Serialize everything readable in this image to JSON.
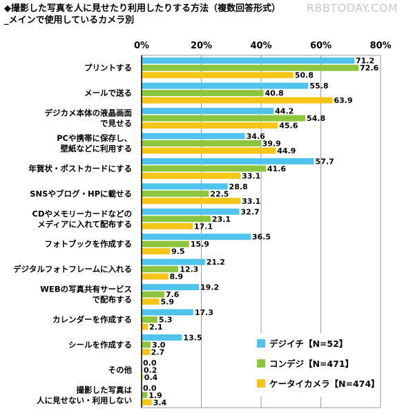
{
  "title_line1": "◆撮影した写真を人に見せたり利用したりする方法（複数回答形式）",
  "title_line2": "_メインで使用しているカメラ別",
  "watermark": "RBBTODAY.COM",
  "chart_data": {
    "type": "bar",
    "orientation": "horizontal",
    "xlim": [
      0,
      80
    ],
    "ticks": [
      "0%",
      "20%",
      "40%",
      "60%",
      "80%"
    ],
    "tick_values": [
      0,
      20,
      40,
      60,
      80
    ],
    "grid": true,
    "legend_position": "bottom-right",
    "categories": [
      [
        "プリントする"
      ],
      [
        "メールで送る"
      ],
      [
        "デジカメ本体の液晶画面",
        "で見せる"
      ],
      [
        "PCや携帯に保存し、",
        "壁紙などに利用する"
      ],
      [
        "年賀状・ポストカードにする"
      ],
      [
        "SNSやブログ・HPに載せる"
      ],
      [
        "CDやメモリーカードなどの",
        "メディアに入れて配布する"
      ],
      [
        "フォトブックを作成する"
      ],
      [
        "デジタルフォトフレームに入れる"
      ],
      [
        "WEBの写真共有サービス",
        "で配布する"
      ],
      [
        "カレンダーを作成する"
      ],
      [
        "シールを作成する"
      ],
      [
        "その他"
      ],
      [
        "撮影した写真は",
        "人に見せない・利用しない"
      ]
    ],
    "series": [
      {
        "name": "デジイチ【N=52】",
        "color": "#4fc3eb",
        "values": [
          71.2,
          55.8,
          44.2,
          34.6,
          57.7,
          28.8,
          32.7,
          36.5,
          21.2,
          19.2,
          17.3,
          13.5,
          0.0,
          0.0
        ],
        "labels": [
          "71.2",
          "55.8",
          "44.2",
          "34.6",
          "57.7",
          "28.8",
          "32.7",
          "36.5",
          "21.2",
          "19.2",
          "17.3",
          "13.5",
          "0.0",
          "0.0"
        ]
      },
      {
        "name": "コンデジ【N=471】",
        "color": "#8cc63e",
        "values": [
          72.6,
          40.8,
          54.8,
          39.9,
          41.6,
          22.5,
          23.1,
          15.9,
          12.3,
          7.6,
          5.3,
          3.0,
          0.2,
          1.9
        ],
        "labels": [
          "72.6",
          "40.8",
          "54.8",
          "39.9",
          "41.6",
          "22.5",
          "23.1",
          "15.9",
          "12.3",
          "7.6",
          "5.3",
          "3.0",
          "0.2",
          "1.9"
        ]
      },
      {
        "name": "ケータイカメラ【N=474】",
        "color": "#f5c518",
        "values": [
          50.8,
          63.9,
          45.6,
          44.9,
          33.1,
          33.1,
          17.1,
          9.5,
          8.9,
          5.9,
          2.1,
          2.7,
          0.4,
          3.4
        ],
        "labels": [
          "50.8",
          "63.9",
          "45.6",
          "44.9",
          "33.1",
          "33.1",
          "17.1",
          "9.5",
          "8.9",
          "5.9",
          "2.1",
          "2.7",
          "0.4",
          "3.4"
        ]
      }
    ]
  }
}
